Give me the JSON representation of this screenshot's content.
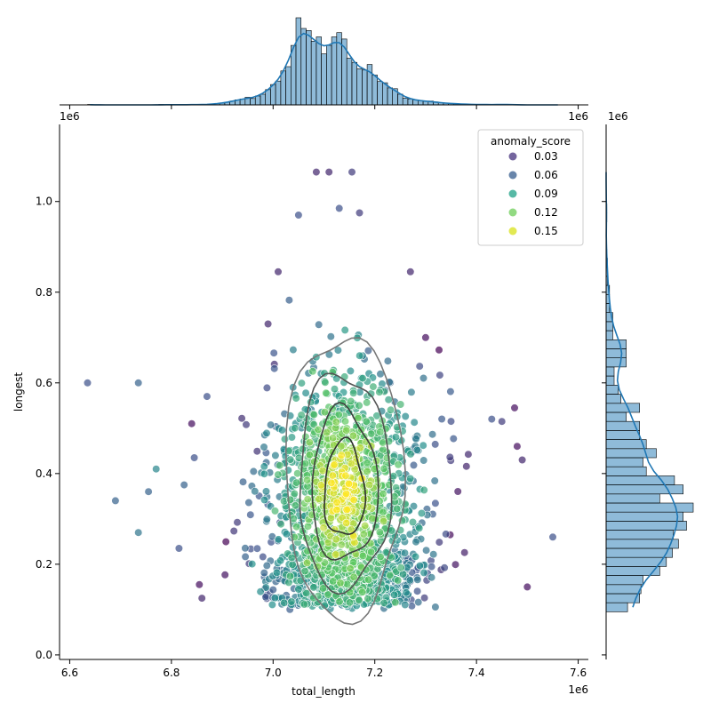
{
  "chart_data": {
    "type": "scatter",
    "xlabel": "total_length",
    "ylabel": "longest",
    "x_multiplier": "1e6",
    "y_multiplier": "1e6",
    "xlim": [
      6.58,
      7.62
    ],
    "ylim": [
      -0.01,
      1.17
    ],
    "x_ticks": [
      "6.6",
      "6.8",
      "7.0",
      "7.2",
      "7.4",
      "7.6"
    ],
    "y_ticks": [
      "0.0",
      "0.2",
      "0.4",
      "0.6",
      "0.8",
      "1.0"
    ],
    "legend": {
      "title": "anomaly_score",
      "placement": "top-right",
      "entries": [
        {
          "label": "0.03",
          "color": "#46327e"
        },
        {
          "label": "0.06",
          "color": "#365c8d"
        },
        {
          "label": "0.09",
          "color": "#1fa187"
        },
        {
          "label": "0.12",
          "color": "#6ece58"
        },
        {
          "label": "0.15",
          "color": "#d8e219"
        }
      ]
    },
    "colormap": [
      "#440154",
      "#3b528b",
      "#21918c",
      "#5ec962",
      "#fde725"
    ],
    "density_center": {
      "x": 7.14,
      "y": 0.36
    },
    "outliers": [
      {
        "x": 6.635,
        "y": 0.6,
        "score": 0.05
      },
      {
        "x": 6.735,
        "y": 0.6,
        "score": 0.06
      },
      {
        "x": 6.69,
        "y": 0.34,
        "score": 0.06
      },
      {
        "x": 6.735,
        "y": 0.27,
        "score": 0.07
      },
      {
        "x": 6.755,
        "y": 0.36,
        "score": 0.06
      },
      {
        "x": 6.77,
        "y": 0.41,
        "score": 0.08
      },
      {
        "x": 6.815,
        "y": 0.235,
        "score": 0.05
      },
      {
        "x": 6.825,
        "y": 0.375,
        "score": 0.06
      },
      {
        "x": 6.84,
        "y": 0.51,
        "score": 0.02
      },
      {
        "x": 6.845,
        "y": 0.435,
        "score": 0.05
      },
      {
        "x": 6.855,
        "y": 0.155,
        "score": 0.02
      },
      {
        "x": 6.86,
        "y": 0.125,
        "score": 0.03
      },
      {
        "x": 6.87,
        "y": 0.57,
        "score": 0.05
      },
      {
        "x": 7.55,
        "y": 0.26,
        "score": 0.05
      },
      {
        "x": 7.5,
        "y": 0.15,
        "score": 0.02
      },
      {
        "x": 7.49,
        "y": 0.43,
        "score": 0.03
      },
      {
        "x": 7.48,
        "y": 0.46,
        "score": 0.02
      },
      {
        "x": 7.475,
        "y": 0.545,
        "score": 0.02
      },
      {
        "x": 7.45,
        "y": 0.515,
        "score": 0.04
      },
      {
        "x": 7.43,
        "y": 0.52,
        "score": 0.05
      },
      {
        "x": 7.085,
        "y": 1.065,
        "score": 0.03
      },
      {
        "x": 7.11,
        "y": 1.065,
        "score": 0.03
      },
      {
        "x": 7.155,
        "y": 1.065,
        "score": 0.04
      },
      {
        "x": 7.05,
        "y": 0.97,
        "score": 0.05
      },
      {
        "x": 7.13,
        "y": 0.985,
        "score": 0.05
      },
      {
        "x": 7.17,
        "y": 0.975,
        "score": 0.04
      },
      {
        "x": 7.3,
        "y": 0.7,
        "score": 0.02
      },
      {
        "x": 7.27,
        "y": 0.845,
        "score": 0.03
      },
      {
        "x": 6.99,
        "y": 0.73,
        "score": 0.03
      },
      {
        "x": 7.01,
        "y": 0.845,
        "score": 0.03
      }
    ],
    "marginal_x": {
      "bin_edges_start": 6.635,
      "bin_width": 0.01,
      "counts": [
        1,
        0,
        0,
        0,
        0,
        0,
        0,
        0,
        0,
        0,
        0,
        0,
        0,
        0,
        1,
        0,
        0,
        1,
        0,
        0,
        1,
        1,
        0,
        1,
        2,
        3,
        4,
        6,
        9,
        12,
        14,
        18,
        15,
        21,
        25,
        36,
        48,
        56,
        80,
        90,
        140,
        205,
        180,
        175,
        150,
        160,
        120,
        140,
        160,
        170,
        155,
        110,
        100,
        85,
        82,
        95,
        70,
        55,
        52,
        40,
        38,
        25,
        16,
        14,
        12,
        10,
        8,
        9,
        7,
        5,
        4,
        3,
        3,
        2,
        2,
        1,
        1,
        1,
        1,
        0,
        1,
        1,
        1,
        1,
        0,
        0,
        0,
        0,
        0,
        0,
        0,
        0,
        0
      ]
    },
    "marginal_y": {
      "bin_edges_start": 0.095,
      "bin_width": 0.02,
      "counts": [
        32,
        50,
        52,
        55,
        80,
        90,
        99,
        108,
        100,
        120,
        115,
        130,
        80,
        115,
        102,
        60,
        55,
        75,
        60,
        50,
        50,
        30,
        50,
        22,
        18,
        12,
        12,
        30,
        30,
        30,
        10,
        10,
        10,
        5,
        5,
        5,
        2,
        2,
        2,
        1,
        0,
        0,
        0,
        1,
        1,
        0,
        0,
        0,
        0
      ]
    },
    "contour_levels": [
      {
        "rx": 0.115,
        "ry": 0.33
      },
      {
        "rx": 0.09,
        "ry": 0.25
      },
      {
        "rx": 0.065,
        "ry": 0.175
      },
      {
        "rx": 0.04,
        "ry": 0.11
      }
    ]
  }
}
